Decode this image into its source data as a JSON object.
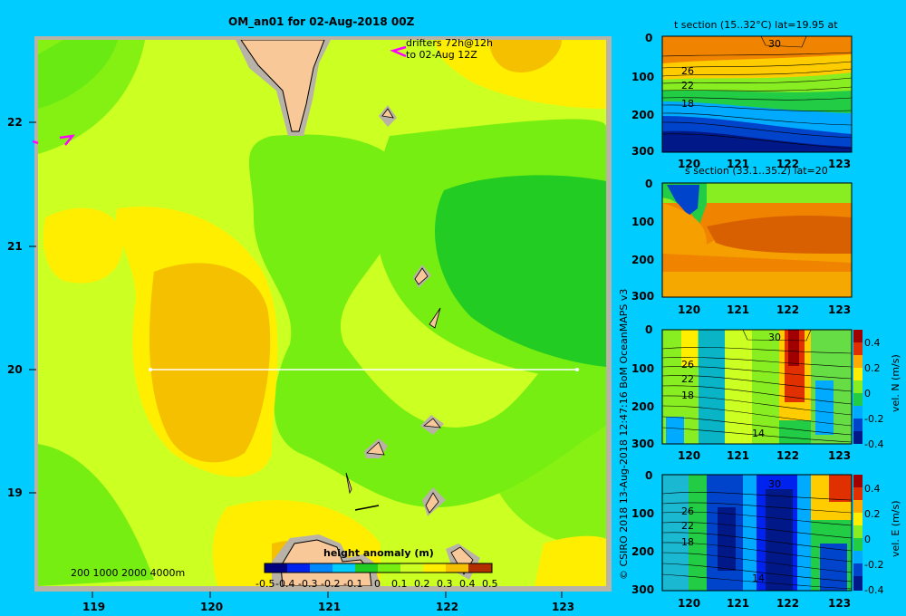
{
  "map": {
    "title": "OM_an01 for 02-Aug-2018 00Z",
    "drifters_line1": "drifters 72h@12h",
    "drifters_line2": "to 02-Aug 12Z",
    "lat_ticks": [
      "22",
      "21",
      "20",
      "19"
    ],
    "lon_ticks": [
      "119",
      "120",
      "121",
      "122",
      "123"
    ],
    "depth_legend": "200  1000  2000  4000m",
    "colorbar_title": "height anomaly  (m)",
    "colorbar_ticks": [
      "-0.5",
      "-0.4",
      "-0.3",
      "-0.2",
      "-0.1",
      "0",
      "0.1",
      "0.2",
      "0.3",
      "0.4",
      "0.5"
    ],
    "section_line_lat": "20"
  },
  "panels": {
    "t_section_title": "t section (15..32°C) lat=19.95 at",
    "s_section_title": "s section (33.1..35.2) lat=20",
    "depth_ticks": [
      "0",
      "100",
      "200",
      "300"
    ],
    "lon_ticks": [
      "120",
      "121",
      "122",
      "123"
    ],
    "vel_ticks": [
      "0.4",
      "0.2",
      "0",
      "-0.2",
      "-0.4"
    ],
    "vel_n_label": "vel. N  (m/s)",
    "vel_e_label": "vel. E  (m/s)",
    "t_contour_labels": [
      "30",
      "26",
      "22",
      "18"
    ],
    "vn_contour_labels": [
      "30",
      "26",
      "22",
      "18",
      "14"
    ],
    "ve_contour_labels": [
      "30",
      "26",
      "22",
      "18",
      "14"
    ]
  },
  "credit": "© CSIRO 2018   13-Aug-2018 12:47:16 BoM OceanMAPS v3",
  "colors": {
    "background": "#00ccff",
    "land": "#f9c898",
    "frame": "#b9b2a6",
    "anomaly_green": "#22cc22",
    "anomaly_lightgreen": "#77ee11",
    "anomaly_yellowgreen": "#ccff22",
    "anomaly_yellow": "#ffee00",
    "anomaly_orange": "#f5c000",
    "drifter": "#ff00ff"
  }
}
